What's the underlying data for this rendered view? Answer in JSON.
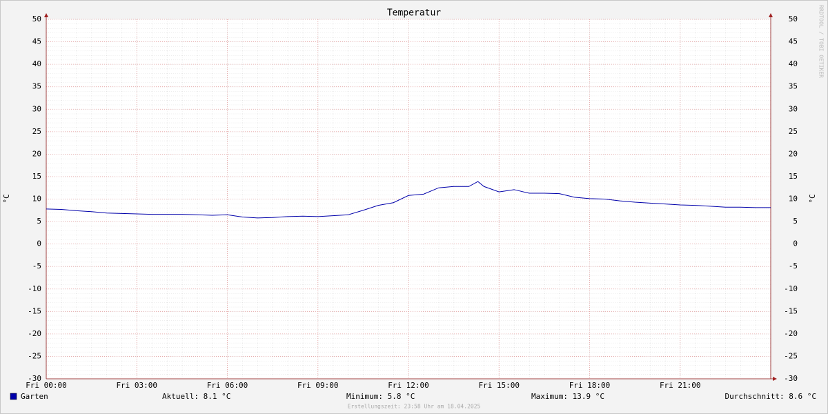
{
  "chart_data": {
    "type": "line",
    "title": "Temperatur",
    "ylabel": "°C",
    "side_text": "RRDTOOL / TOBI OETIKER",
    "x": [
      0,
      0.5,
      1,
      1.5,
      2,
      2.5,
      3,
      3.5,
      4,
      4.5,
      5,
      5.5,
      6,
      6.5,
      7,
      7.5,
      8,
      8.5,
      9,
      9.5,
      10,
      10.5,
      11,
      11.5,
      12,
      12.5,
      13,
      13.5,
      14,
      14.3,
      14.5,
      15,
      15.5,
      16,
      16.5,
      17,
      17.5,
      18,
      18.5,
      19,
      19.5,
      20,
      20.5,
      21,
      21.5,
      22,
      22.5,
      23,
      23.5,
      24
    ],
    "series": [
      {
        "name": "Garten",
        "color": "#0000aa",
        "values": [
          7.8,
          7.7,
          7.4,
          7.2,
          6.9,
          6.8,
          6.7,
          6.6,
          6.6,
          6.6,
          6.5,
          6.4,
          6.5,
          6.0,
          5.8,
          5.9,
          6.1,
          6.2,
          6.1,
          6.3,
          6.5,
          7.5,
          8.6,
          9.2,
          10.8,
          11.1,
          12.5,
          12.8,
          12.8,
          13.9,
          12.8,
          11.6,
          12.1,
          11.3,
          11.3,
          11.2,
          10.4,
          10.1,
          10.0,
          9.6,
          9.3,
          9.1,
          8.9,
          8.7,
          8.6,
          8.4,
          8.2,
          8.2,
          8.1,
          8.1
        ]
      }
    ],
    "xlim": [
      0,
      24
    ],
    "xticks": [
      {
        "value": 0,
        "label": "Fri 00:00"
      },
      {
        "value": 3,
        "label": "Fri 03:00"
      },
      {
        "value": 6,
        "label": "Fri 06:00"
      },
      {
        "value": 9,
        "label": "Fri 09:00"
      },
      {
        "value": 12,
        "label": "Fri 12:00"
      },
      {
        "value": 15,
        "label": "Fri 15:00"
      },
      {
        "value": 18,
        "label": "Fri 18:00"
      },
      {
        "value": 21,
        "label": "Fri 21:00"
      }
    ],
    "ylim": [
      -30,
      50
    ],
    "yticks": [
      -30,
      -25,
      -20,
      -15,
      -10,
      -5,
      0,
      5,
      10,
      15,
      20,
      25,
      30,
      35,
      40,
      45,
      50
    ],
    "grid": true,
    "stats": [
      "Aktuell: 8.1 °C",
      "Minimum: 5.8 °C",
      "Maximum: 13.9 °C",
      "Durchschnitt: 8.6 °C"
    ],
    "footer": "Erstellungszeit: 23:58 Uhr am 18.04.2025"
  }
}
